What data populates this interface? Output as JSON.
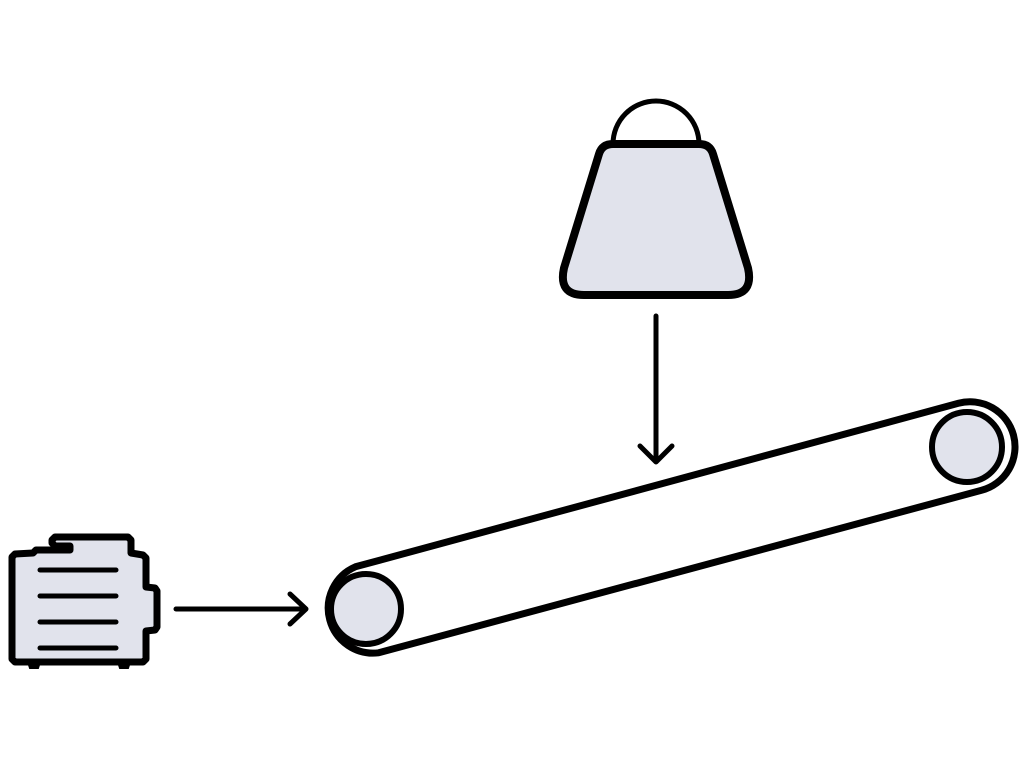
{
  "colors": {
    "background": "#ffffff",
    "stroke": "#000000",
    "fill": "#e1e3ec"
  }
}
